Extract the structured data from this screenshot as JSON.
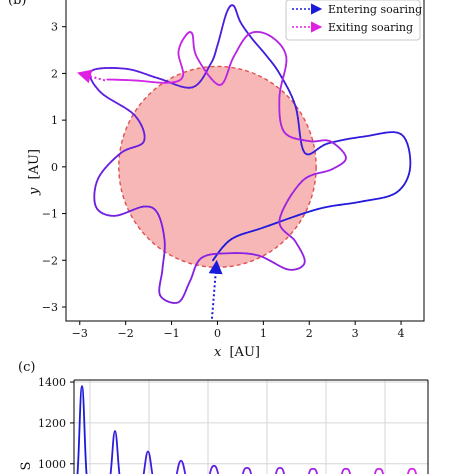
{
  "panel_labels": {
    "top": "(b)",
    "bottom": "(c)"
  },
  "chart_data": [
    {
      "type": "line",
      "xlabel_var": "x",
      "ylabel_var": "y",
      "xlabel_unit": "[AU]",
      "ylabel_unit": "[AU]",
      "xlim": [
        -3.3,
        4.5
      ],
      "ylim": [
        -3.3,
        3.7
      ],
      "xticks": [
        -3,
        -2,
        -1,
        0,
        1,
        2,
        3,
        4
      ],
      "yticks": [
        -3,
        -2,
        -1,
        0,
        1,
        2,
        3
      ],
      "xtick_labels": [
        "−3",
        "−2",
        "−1",
        "0",
        "1",
        "2",
        "3",
        "4"
      ],
      "ytick_labels": [
        "−3",
        "−2",
        "−1",
        "0",
        "1",
        "2",
        "3"
      ],
      "grid": false,
      "legend_position": "top-right",
      "legend": [
        {
          "label": "Entering soaring",
          "color": "#1a1adb",
          "style": "dotted-arrow"
        },
        {
          "label": "Exiting soaring",
          "color": "#e020e0",
          "style": "dotted-arrow"
        }
      ],
      "region": {
        "shape": "circle",
        "center": [
          0,
          0
        ],
        "radius": 2.15,
        "fill": "#f7b7b7",
        "edge": "#e05050"
      },
      "colors": {
        "start": "#1a1adb",
        "end": "#d326e6"
      },
      "entering_arrow": [
        [
          -0.12,
          -3.25
        ],
        [
          -0.02,
          -2.05
        ]
      ],
      "exiting_arrow": [
        [
          -2.45,
          1.85
        ],
        [
          -3.0,
          2.0
        ]
      ],
      "trajectory": [
        [
          -0.1,
          -2.0
        ],
        [
          0.3,
          -1.55
        ],
        [
          1.0,
          -1.3
        ],
        [
          2.2,
          -0.9
        ],
        [
          3.1,
          -0.75
        ],
        [
          3.9,
          -0.55
        ],
        [
          4.2,
          0.0
        ],
        [
          4.0,
          0.7
        ],
        [
          3.2,
          0.65
        ],
        [
          2.4,
          0.5
        ],
        [
          1.9,
          0.3
        ],
        [
          1.7,
          1.3
        ],
        [
          1.35,
          2.0
        ],
        [
          1.05,
          2.4
        ],
        [
          0.75,
          2.75
        ],
        [
          0.5,
          3.1
        ],
        [
          0.35,
          3.45
        ],
        [
          0.2,
          3.3
        ],
        [
          0.0,
          2.6
        ],
        [
          -0.15,
          2.2
        ],
        [
          -0.55,
          1.7
        ],
        [
          -1.3,
          1.9
        ],
        [
          -2.0,
          2.1
        ],
        [
          -2.75,
          2.05
        ],
        [
          -2.55,
          1.6
        ],
        [
          -1.8,
          1.1
        ],
        [
          -1.6,
          0.55
        ],
        [
          -2.1,
          0.3
        ],
        [
          -2.6,
          -0.25
        ],
        [
          -2.65,
          -0.85
        ],
        [
          -2.25,
          -1.05
        ],
        [
          -1.6,
          -0.85
        ],
        [
          -1.3,
          -1.0
        ],
        [
          -1.15,
          -1.6
        ],
        [
          -1.2,
          -2.2
        ],
        [
          -1.25,
          -2.75
        ],
        [
          -0.85,
          -2.9
        ],
        [
          -0.6,
          -2.45
        ],
        [
          -0.35,
          -1.95
        ],
        [
          0.25,
          -1.85
        ],
        [
          0.9,
          -1.9
        ],
        [
          1.55,
          -2.2
        ],
        [
          1.9,
          -2.05
        ],
        [
          1.7,
          -1.6
        ],
        [
          1.35,
          -1.15
        ],
        [
          1.85,
          -0.3
        ],
        [
          2.5,
          -0.05
        ],
        [
          2.8,
          0.2
        ],
        [
          2.45,
          0.55
        ],
        [
          2.0,
          0.55
        ],
        [
          1.45,
          0.75
        ],
        [
          1.35,
          1.5
        ],
        [
          1.5,
          2.35
        ],
        [
          1.15,
          2.8
        ],
        [
          0.7,
          2.85
        ],
        [
          0.35,
          2.35
        ],
        [
          0.05,
          1.75
        ],
        [
          -0.45,
          2.35
        ],
        [
          -0.55,
          2.85
        ],
        [
          -0.7,
          2.8
        ],
        [
          -0.85,
          2.45
        ],
        [
          -0.75,
          1.95
        ],
        [
          -1.05,
          1.8
        ],
        [
          -1.8,
          1.85
        ],
        [
          -2.4,
          1.87
        ]
      ]
    },
    {
      "type": "line",
      "ylim_visible": [
        950,
        1400
      ],
      "yticks": [
        1000,
        1200,
        1400
      ],
      "ytick_labels": [
        "1000",
        "1200",
        "1400"
      ],
      "ylabel": "S",
      "grid": true,
      "colors": {
        "start": "#1a1adb",
        "end": "#d326e6"
      },
      "peaks": [
        {
          "x": 1,
          "y": 1380
        },
        {
          "x": 2,
          "y": 1160
        },
        {
          "x": 3,
          "y": 1060
        },
        {
          "x": 4,
          "y": 1015
        },
        {
          "x": 5,
          "y": 990
        },
        {
          "x": 6,
          "y": 980
        },
        {
          "x": 7,
          "y": 980
        },
        {
          "x": 8,
          "y": 975
        },
        {
          "x": 9,
          "y": 975
        },
        {
          "x": 10,
          "y": 975
        },
        {
          "x": 11,
          "y": 975
        }
      ]
    }
  ]
}
